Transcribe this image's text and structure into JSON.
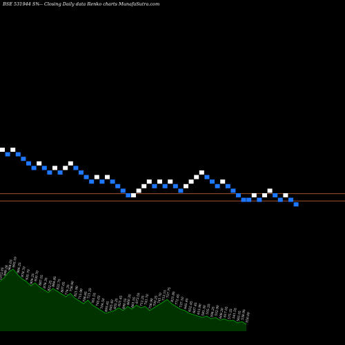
{
  "chart_data": {
    "type": "renko",
    "title": "BSE 531944  S%-- Closing Daily data  Renko  charts MunafaSutra.com",
    "brick_colors": {
      "up": "#ffffff",
      "down": "#1e78ff"
    },
    "reference_line_color": "#a0522d",
    "volume_fill_color": "#003300",
    "volume_line_color": "#00b400",
    "bricks": [
      {
        "level": 0,
        "dir": "up"
      },
      {
        "level": -1,
        "dir": "down"
      },
      {
        "level": 0,
        "dir": "up"
      },
      {
        "level": -1,
        "dir": "down"
      },
      {
        "level": -2,
        "dir": "down"
      },
      {
        "level": -3,
        "dir": "down"
      },
      {
        "level": -4,
        "dir": "down"
      },
      {
        "level": -3,
        "dir": "up"
      },
      {
        "level": -4,
        "dir": "down"
      },
      {
        "level": -5,
        "dir": "down"
      },
      {
        "level": -4,
        "dir": "up"
      },
      {
        "level": -5,
        "dir": "down"
      },
      {
        "level": -4,
        "dir": "up"
      },
      {
        "level": -3,
        "dir": "up"
      },
      {
        "level": -4,
        "dir": "down"
      },
      {
        "level": -5,
        "dir": "down"
      },
      {
        "level": -6,
        "dir": "down"
      },
      {
        "level": -7,
        "dir": "down"
      },
      {
        "level": -6,
        "dir": "up"
      },
      {
        "level": -7,
        "dir": "down"
      },
      {
        "level": -6,
        "dir": "up"
      },
      {
        "level": -7,
        "dir": "down"
      },
      {
        "level": -8,
        "dir": "down"
      },
      {
        "level": -9,
        "dir": "down"
      },
      {
        "level": -10,
        "dir": "down"
      },
      {
        "level": -10,
        "dir": "up"
      },
      {
        "level": -9,
        "dir": "up"
      },
      {
        "level": -8,
        "dir": "up"
      },
      {
        "level": -7,
        "dir": "up"
      },
      {
        "level": -8,
        "dir": "down"
      },
      {
        "level": -7,
        "dir": "up"
      },
      {
        "level": -8,
        "dir": "down"
      },
      {
        "level": -7,
        "dir": "up"
      },
      {
        "level": -8,
        "dir": "down"
      },
      {
        "level": -9,
        "dir": "down"
      },
      {
        "level": -8,
        "dir": "up"
      },
      {
        "level": -7,
        "dir": "up"
      },
      {
        "level": -6,
        "dir": "up"
      },
      {
        "level": -5,
        "dir": "up"
      },
      {
        "level": -6,
        "dir": "down"
      },
      {
        "level": -7,
        "dir": "down"
      },
      {
        "level": -8,
        "dir": "down"
      },
      {
        "level": -7,
        "dir": "up"
      },
      {
        "level": -8,
        "dir": "down"
      },
      {
        "level": -9,
        "dir": "down"
      },
      {
        "level": -10,
        "dir": "down"
      },
      {
        "level": -11,
        "dir": "down"
      },
      {
        "level": -11,
        "dir": "down"
      },
      {
        "level": -10,
        "dir": "up"
      },
      {
        "level": -11,
        "dir": "down"
      },
      {
        "level": -10,
        "dir": "up"
      },
      {
        "level": -9,
        "dir": "up"
      },
      {
        "level": -10,
        "dir": "down"
      },
      {
        "level": -11,
        "dir": "down"
      },
      {
        "level": -10,
        "dir": "up"
      },
      {
        "level": -11,
        "dir": "down"
      },
      {
        "level": -12,
        "dir": "down"
      }
    ],
    "reference_levels": [
      -9.6,
      -11.2
    ],
    "volume": [
      0.72,
      0.78,
      0.86,
      0.9,
      0.82,
      0.76,
      0.72,
      0.66,
      0.7,
      0.64,
      0.6,
      0.56,
      0.62,
      0.58,
      0.54,
      0.5,
      0.55,
      0.48,
      0.44,
      0.4,
      0.45,
      0.38,
      0.34,
      0.3,
      0.26,
      0.28,
      0.3,
      0.34,
      0.3,
      0.36,
      0.32,
      0.38,
      0.34,
      0.36,
      0.3,
      0.34,
      0.38,
      0.42,
      0.46,
      0.4,
      0.36,
      0.32,
      0.3,
      0.26,
      0.24,
      0.22,
      0.2,
      0.22,
      0.18,
      0.2,
      0.16,
      0.18,
      0.15,
      0.16,
      0.12,
      0.14,
      0.1
    ],
    "volume_labels": [
      "1012.05",
      "999.28",
      "964.03",
      "993.19",
      "964.25",
      "978.70",
      "935.70",
      "904.25",
      "930.70",
      "887.55",
      "876.35",
      "822.25",
      "864.85",
      "822.75",
      "807.05",
      "774.35",
      "756.90",
      "821.90",
      "715.90",
      "706.65",
      "721.25",
      "761.55",
      "745.03",
      "704.50",
      "693.45",
      "645.40",
      "655.25",
      "621.45",
      "690.55",
      "600.35",
      "661.55",
      "673.55",
      "712.25",
      "741.70",
      "756.90",
      "700.25",
      "741.70",
      "713.15",
      "757.75",
      "821.85",
      "772.45",
      "737.10",
      "645.45",
      "652.45",
      "607.45",
      "615.90",
      "581.30",
      "555.25",
      "594.25",
      "552.90",
      "608.20",
      "617.55",
      "575.25",
      "541.55",
      "563.55",
      "538.95",
      "550.00"
    ]
  }
}
